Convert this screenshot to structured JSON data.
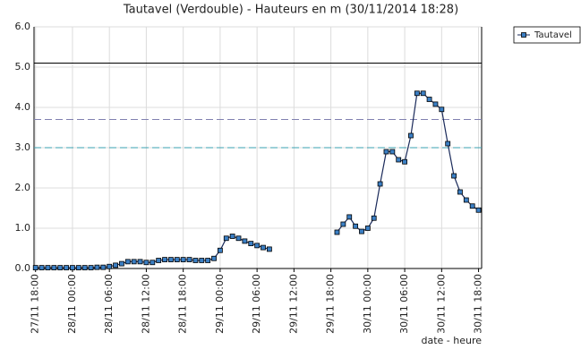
{
  "chart_data": {
    "type": "line",
    "title": "Tautavel (Verdouble) - Hauteurs en m (30/11/2014 18:28)",
    "x_label": "date - heure",
    "x": [
      "27/11 18:00",
      "27/11 19:00",
      "27/11 20:00",
      "27/11 21:00",
      "27/11 22:00",
      "27/11 23:00",
      "28/11 00:00",
      "28/11 01:00",
      "28/11 02:00",
      "28/11 03:00",
      "28/11 04:00",
      "28/11 05:00",
      "28/11 06:00",
      "28/11 07:00",
      "28/11 08:00",
      "28/11 09:00",
      "28/11 10:00",
      "28/11 11:00",
      "28/11 12:00",
      "28/11 13:00",
      "28/11 14:00",
      "28/11 15:00",
      "28/11 16:00",
      "28/11 17:00",
      "28/11 18:00",
      "28/11 19:00",
      "28/11 20:00",
      "28/11 21:00",
      "28/11 22:00",
      "28/11 23:00",
      "29/11 00:00",
      "29/11 01:00",
      "29/11 02:00",
      "29/11 03:00",
      "29/11 04:00",
      "29/11 05:00",
      "29/11 06:00",
      "29/11 07:00",
      "29/11 08:00",
      "29/11 13:00",
      "29/11 19:00",
      "29/11 20:00",
      "29/11 21:00",
      "29/11 22:00",
      "29/11 23:00",
      "30/11 00:00",
      "30/11 01:00",
      "30/11 02:00",
      "30/11 03:00",
      "30/11 04:00",
      "30/11 05:00",
      "30/11 06:00",
      "30/11 07:00",
      "30/11 08:00",
      "30/11 09:00",
      "30/11 10:00",
      "30/11 11:00",
      "30/11 12:00",
      "30/11 13:00",
      "30/11 14:00",
      "30/11 15:00",
      "30/11 16:00",
      "30/11 17:00",
      "30/11 18:00"
    ],
    "series": [
      {
        "name": "Tautavel",
        "color": "#3b7fc4",
        "line_color": "#1a2a5a",
        "values": [
          0.02,
          0.02,
          0.02,
          0.02,
          0.02,
          0.02,
          0.02,
          0.02,
          0.02,
          0.02,
          0.03,
          0.03,
          0.05,
          0.08,
          0.12,
          0.17,
          0.17,
          0.17,
          0.15,
          0.15,
          0.2,
          0.22,
          0.22,
          0.22,
          0.22,
          0.22,
          0.2,
          0.2,
          0.2,
          0.25,
          0.45,
          0.75,
          0.8,
          0.75,
          0.68,
          0.62,
          0.57,
          0.52,
          0.48,
          null,
          0.9,
          1.1,
          1.28,
          1.05,
          0.92,
          1.0,
          1.25,
          2.1,
          2.9,
          2.9,
          2.7,
          2.65,
          3.3,
          4.35,
          4.35,
          4.2,
          4.08,
          3.95,
          3.1,
          2.3,
          1.9,
          1.7,
          1.55,
          1.45
        ]
      }
    ],
    "xlim": [
      "27/11 17:45",
      "30/11 18:30"
    ],
    "xticks": [
      "27/11 18:00",
      "28/11 00:00",
      "28/11 06:00",
      "28/11 12:00",
      "28/11 18:00",
      "29/11 00:00",
      "29/11 06:00",
      "29/11 12:00",
      "29/11 18:00",
      "30/11 00:00",
      "30/11 06:00",
      "30/11 12:00",
      "30/11 18:00"
    ],
    "ylim": [
      0,
      6
    ],
    "yticks": [
      {
        "value": 0,
        "label": "0.0"
      },
      {
        "value": 1,
        "label": "1.0"
      },
      {
        "value": 2,
        "label": "2.0"
      },
      {
        "value": 3,
        "label": "3.0"
      },
      {
        "value": 4,
        "label": "4.0"
      },
      {
        "value": 5,
        "label": "5.0"
      },
      {
        "value": 6,
        "label": "6.0"
      }
    ],
    "reference_lines": [
      {
        "value": 5.1,
        "color": "#000000",
        "dash": "none"
      },
      {
        "value": 3.7,
        "color": "#8080b0",
        "dash": "8 4"
      },
      {
        "value": 3.0,
        "color": "#3aa0b0",
        "dash": "8 4"
      }
    ],
    "grid": true,
    "legend": "top-right"
  }
}
